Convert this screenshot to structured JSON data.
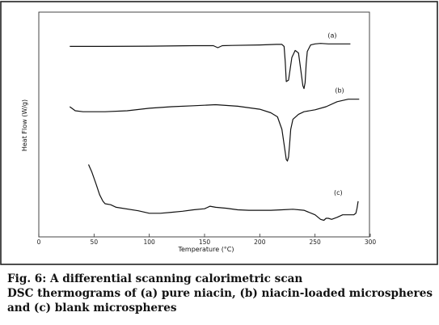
{
  "chart_data": {
    "type": "line",
    "xlabel": "Temperature (°C)",
    "ylabel": "Heat Flow (W/g)",
    "xlim": [
      0,
      300
    ],
    "x_ticks": [
      0,
      50,
      100,
      150,
      200,
      250,
      300
    ],
    "grid": false,
    "legend": "none",
    "series": [
      {
        "name": "(a)",
        "x": [
          28,
          60,
          100,
          140,
          158,
          162,
          166,
          175,
          200,
          215,
          220,
          222,
          223,
          224,
          226,
          229,
          232,
          235,
          237,
          239,
          240,
          241,
          242,
          243,
          246,
          250,
          255,
          262,
          272,
          282
        ],
        "y": [
          10.0,
          10.0,
          10.05,
          10.15,
          10.15,
          9.75,
          10.15,
          10.2,
          10.3,
          10.4,
          10.4,
          10.0,
          7.0,
          3.0,
          3.3,
          7.8,
          9.2,
          8.7,
          5.5,
          2.2,
          1.6,
          2.8,
          6.5,
          9.0,
          10.3,
          10.5,
          10.6,
          10.5,
          10.5,
          10.5
        ]
      },
      {
        "name": "(b)",
        "x": [
          28,
          33,
          40,
          60,
          80,
          100,
          120,
          140,
          160,
          180,
          200,
          210,
          216,
          220,
          222,
          224,
          225,
          226,
          227,
          228,
          230,
          235,
          240,
          250,
          260,
          270,
          280,
          290
        ],
        "y": [
          -2.0,
          -2.8,
          -3.0,
          -3.0,
          -2.8,
          -2.3,
          -2.0,
          -1.8,
          -1.6,
          -1.9,
          -2.5,
          -3.2,
          -4.0,
          -6.5,
          -9.5,
          -12.5,
          -12.8,
          -12.0,
          -9.5,
          -6.5,
          -4.5,
          -3.5,
          -3.0,
          -2.6,
          -2.0,
          -1.0,
          -0.5,
          -0.5
        ]
      },
      {
        "name": "(c)",
        "x": [
          45,
          48,
          52,
          55,
          58,
          60,
          65,
          70,
          90,
          100,
          110,
          120,
          130,
          140,
          150,
          155,
          160,
          170,
          180,
          190,
          200,
          210,
          220,
          230,
          240,
          250,
          255,
          258,
          260,
          262,
          265,
          270,
          275,
          280,
          285,
          287,
          288,
          289
        ],
        "y": [
          -13.5,
          -15.0,
          -17.5,
          -19.5,
          -20.8,
          -21.3,
          -21.5,
          -22.0,
          -22.7,
          -23.2,
          -23.2,
          -23.0,
          -22.8,
          -22.5,
          -22.3,
          -21.8,
          -22.0,
          -22.2,
          -22.5,
          -22.6,
          -22.6,
          -22.6,
          -22.5,
          -22.4,
          -22.6,
          -23.5,
          -24.4,
          -24.6,
          -24.2,
          -24.2,
          -24.4,
          -24.0,
          -23.5,
          -23.5,
          -23.5,
          -23.2,
          -22.2,
          -20.8
        ]
      }
    ],
    "annotations": [
      "(a)",
      "(b)",
      "(c)"
    ]
  },
  "caption": {
    "prefix": "Fig. 6: A differential scanning calorimetric scan",
    "text": "DSC thermograms of (a) pure niacin, (b) niacin-loaded microspheres and (c) blank microspheres"
  },
  "colors": {
    "line": "#111111",
    "frame": "#222222"
  }
}
